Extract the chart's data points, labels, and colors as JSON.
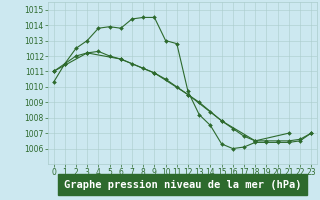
{
  "title": "Graphe pression niveau de la mer (hPa)",
  "bg_color": "#cce8f0",
  "grid_color": "#aacccc",
  "line_color": "#2d6a2d",
  "marker_size": 2.0,
  "line_width": 0.8,
  "ylim": [
    1005.0,
    1015.5
  ],
  "xlim": [
    -0.5,
    23.5
  ],
  "yticks": [
    1006,
    1007,
    1008,
    1009,
    1010,
    1011,
    1012,
    1013,
    1014,
    1015
  ],
  "xticks": [
    0,
    1,
    2,
    3,
    4,
    5,
    6,
    7,
    8,
    9,
    10,
    11,
    12,
    13,
    14,
    15,
    16,
    17,
    18,
    19,
    20,
    21,
    22,
    23
  ],
  "tick_fontsize": 5.5,
  "title_fontsize": 7.5,
  "title_bg": "#2d6a2d",
  "title_text_color": "#ffffff",
  "series0_x": [
    0,
    1,
    2,
    3,
    4,
    5,
    6,
    7,
    8,
    9,
    10,
    11,
    12,
    13,
    14,
    15,
    16,
    17,
    18,
    19,
    20,
    21,
    22,
    23
  ],
  "series0_y": [
    1010.3,
    1011.5,
    1012.5,
    1013.0,
    1013.8,
    1013.9,
    1013.8,
    1014.4,
    1014.5,
    1014.5,
    1013.0,
    1012.8,
    1009.7,
    1008.2,
    1007.5,
    1006.3,
    1006.0,
    1006.1,
    1006.4,
    1006.4,
    1006.4,
    1006.4,
    1006.5,
    1007.0
  ],
  "series1_x": [
    0,
    1,
    2,
    3,
    4,
    5,
    6,
    7,
    8,
    9,
    10,
    11,
    12,
    13,
    14,
    15,
    16,
    17,
    18,
    19,
    20,
    21,
    22,
    23
  ],
  "series1_y": [
    1011.0,
    1011.5,
    1012.0,
    1012.2,
    1012.3,
    1012.0,
    1011.8,
    1011.5,
    1011.2,
    1010.9,
    1010.5,
    1010.0,
    1009.5,
    1009.0,
    1008.4,
    1007.8,
    1007.3,
    1006.8,
    1006.5,
    1006.5,
    1006.5,
    1006.5,
    1006.6,
    1007.0
  ],
  "series2_x": [
    0,
    3,
    6,
    9,
    12,
    15,
    18,
    21
  ],
  "series2_y": [
    1011.0,
    1012.2,
    1011.8,
    1010.9,
    1009.5,
    1007.8,
    1006.5,
    1007.0
  ]
}
